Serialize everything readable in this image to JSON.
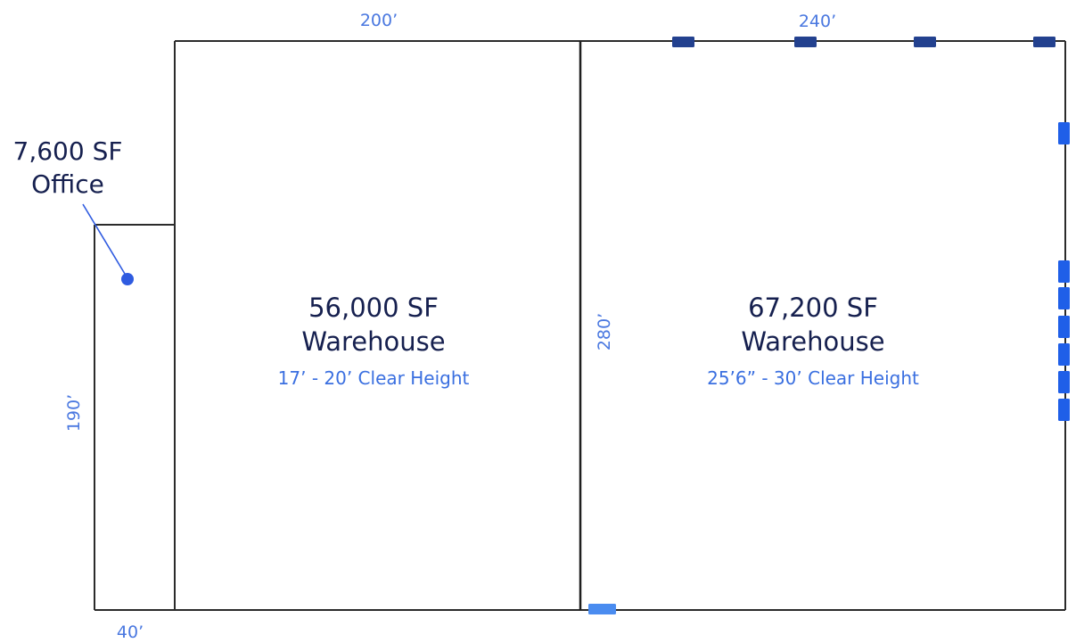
{
  "dimensions": {
    "top_left": "200’",
    "top_right": "240’",
    "middle_depth": "280’",
    "office_depth": "190’",
    "office_width": "40’"
  },
  "office": {
    "area": "7,600 SF",
    "label": "Office"
  },
  "warehouse_1": {
    "area": "56,000 SF",
    "label": "Warehouse",
    "clear_height": "17’ - 20’ Clear Height"
  },
  "warehouse_2": {
    "area": "67,200 SF",
    "label": "Warehouse",
    "clear_height": "25’6” - 30’ Clear Height"
  },
  "dock_doors": {
    "top_wall_count": 4,
    "right_wall_count": 7,
    "bottom_wall_count": 1,
    "top_color": "#23418f",
    "right_color": "#1f5fe8",
    "bottom_color": "#4a8cf0"
  }
}
